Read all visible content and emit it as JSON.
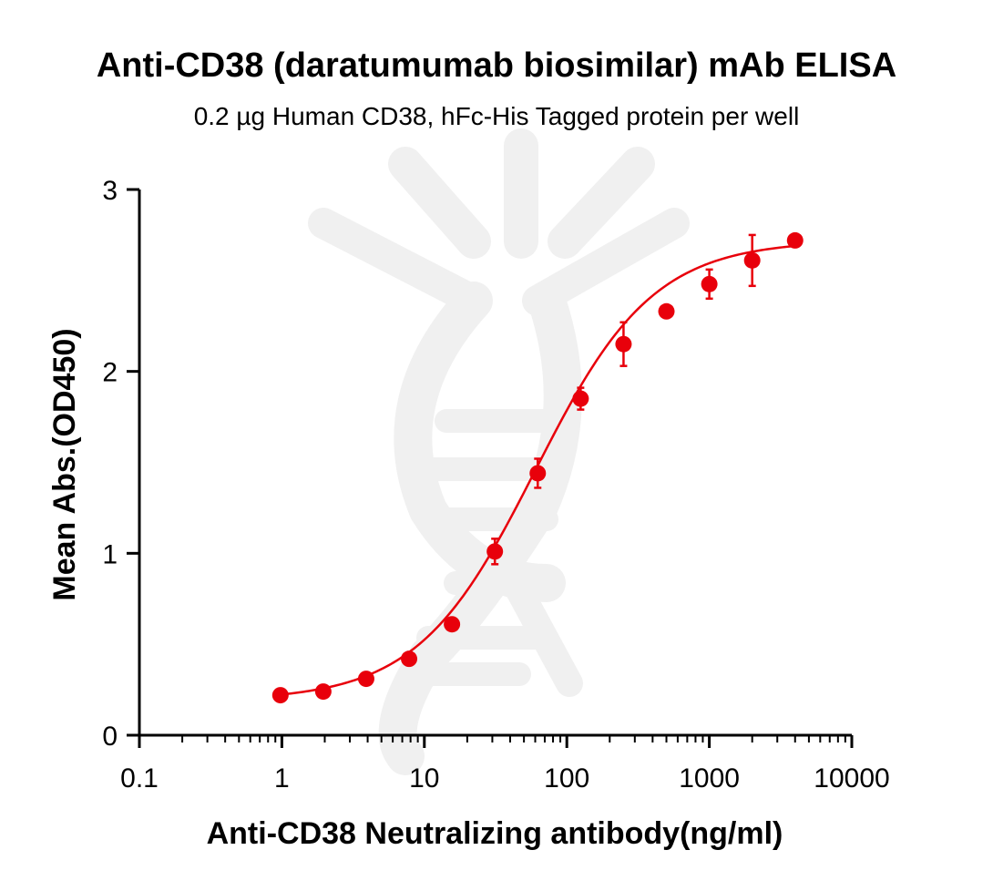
{
  "chart_data": {
    "type": "scatter",
    "title": "Anti-CD38 (daratumumab biosimilar) mAb ELISA",
    "subtitle": "0.2 µg Human CD38, hFc-His Tagged protein per well",
    "xlabel": "Anti-CD38 Neutralizing antibody(ng/ml)",
    "ylabel": "Mean Abs.(OD450)",
    "x_scale": "log",
    "xlim": [
      0.1,
      10000
    ],
    "ylim": [
      0,
      3
    ],
    "x_ticks": [
      "0.1",
      "1",
      "10",
      "100",
      "1000",
      "10000"
    ],
    "y_ticks": [
      "0",
      "1",
      "2",
      "3"
    ],
    "grid": false,
    "series": [
      {
        "color": "#e8000b",
        "marker": "circle",
        "x": [
          0.977,
          1.953,
          3.906,
          7.813,
          15.625,
          31.25,
          62.5,
          125,
          250,
          500,
          1000,
          2000,
          4000
        ],
        "y": [
          0.22,
          0.24,
          0.31,
          0.42,
          0.61,
          1.01,
          1.44,
          1.85,
          2.15,
          2.33,
          2.48,
          2.61,
          2.72
        ],
        "error": [
          0.0,
          0.0,
          0.0,
          0.0,
          0.0,
          0.07,
          0.08,
          0.06,
          0.12,
          0.0,
          0.08,
          0.14,
          0.0
        ],
        "fit": "4PL"
      }
    ]
  }
}
